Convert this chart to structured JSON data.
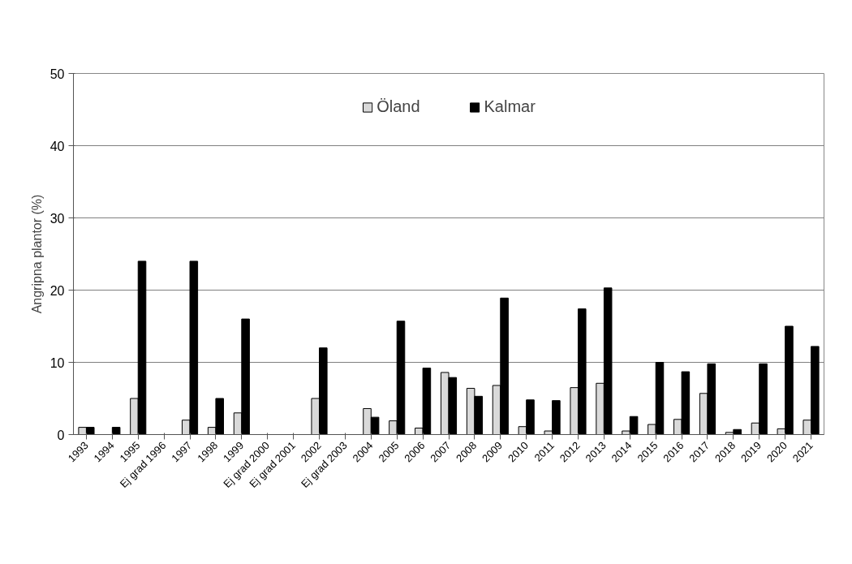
{
  "chart_data": {
    "type": "bar",
    "ylabel": "Angripna plantor (%)",
    "categories": [
      "1993",
      "1994",
      "1995",
      "Ej grad 1996",
      "1997",
      "1998",
      "1999",
      "Ej grad 2000",
      "Ej grad 2001",
      "2002",
      "Ej grad 2003",
      "2004",
      "2005",
      "2006",
      "2007",
      "2008",
      "2009",
      "2010",
      "2011",
      "2012",
      "2013",
      "2014",
      "2015",
      "2016",
      "2017",
      "2018",
      "2019",
      "2020",
      "2021"
    ],
    "series": [
      {
        "name": "Öland",
        "color": "#d9d9d9",
        "values": [
          1,
          null,
          5,
          null,
          2,
          1,
          3,
          null,
          null,
          5,
          null,
          3.6,
          1.9,
          0.9,
          8.6,
          6.4,
          6.8,
          1.1,
          0.5,
          6.5,
          7.1,
          0.5,
          1.4,
          2.1,
          5.7,
          0.3,
          1.6,
          0.8,
          2.0
        ]
      },
      {
        "name": "Kalmar",
        "color": "#000000",
        "values": [
          1,
          1,
          24,
          null,
          24,
          5,
          16,
          null,
          null,
          12,
          null,
          2.4,
          15.7,
          9.2,
          7.9,
          5.3,
          18.9,
          4.8,
          4.7,
          17.4,
          20.3,
          2.5,
          10,
          8.7,
          9.8,
          0.7,
          9.8,
          15,
          12.2
        ]
      }
    ],
    "ylim": [
      0,
      50
    ],
    "yticks": [
      0,
      10,
      20,
      30,
      40,
      50
    ],
    "grid": "y",
    "legend": "top"
  }
}
